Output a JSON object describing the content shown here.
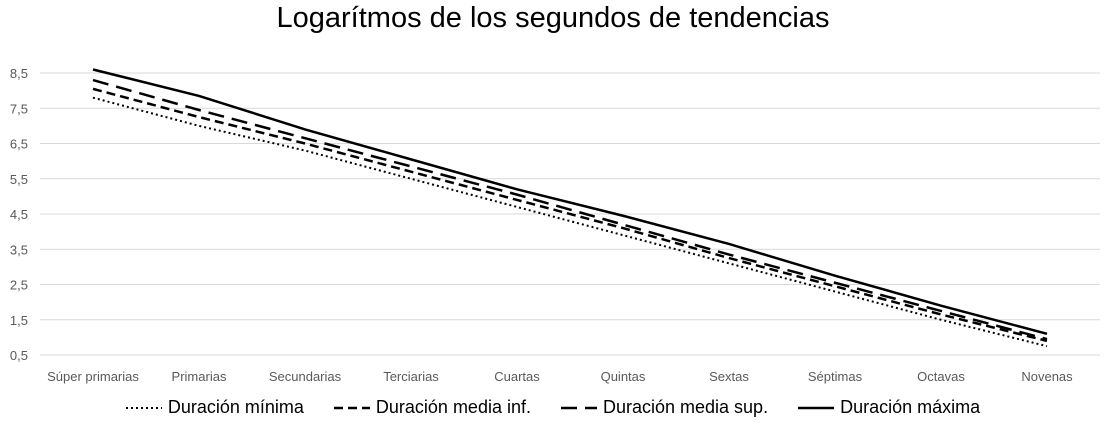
{
  "chart_data": {
    "type": "line",
    "title": "Logarítmos de los segundos de tendencias",
    "xlabel": "",
    "ylabel": "",
    "categories": [
      "Súper primarias",
      "Primarias",
      "Secundarias",
      "Terciarias",
      "Cuartas",
      "Quintas",
      "Sextas",
      "Séptimas",
      "Octavas",
      "Novenas"
    ],
    "yticks": [
      "0,5",
      "1,5",
      "2,5",
      "3,5",
      "4,5",
      "5,5",
      "6,5",
      "7,5",
      "8,5"
    ],
    "ylim": [
      0.5,
      9
    ],
    "grid": true,
    "legend_position": "bottom",
    "series": [
      {
        "name": "Duración mínima",
        "style": "dotted",
        "values": [
          7.8,
          7.0,
          6.3,
          5.5,
          4.7,
          3.9,
          3.1,
          2.3,
          1.5,
          0.75
        ]
      },
      {
        "name": "Duración media inf.",
        "style": "short-dash",
        "values": [
          8.05,
          7.25,
          6.5,
          5.7,
          4.9,
          4.1,
          3.25,
          2.45,
          1.65,
          0.9
        ]
      },
      {
        "name": "Duración media sup.",
        "style": "long-dash",
        "values": [
          8.3,
          7.45,
          6.65,
          5.85,
          5.05,
          4.2,
          3.35,
          2.55,
          1.75,
          0.95
        ]
      },
      {
        "name": "Duración máxima",
        "style": "solid",
        "values": [
          8.6,
          7.85,
          6.9,
          6.05,
          5.2,
          4.45,
          3.65,
          2.75,
          1.9,
          1.1
        ]
      }
    ]
  },
  "colors": {
    "line": "#000000",
    "grid": "#d9d9d9",
    "tick_text": "#595959"
  }
}
